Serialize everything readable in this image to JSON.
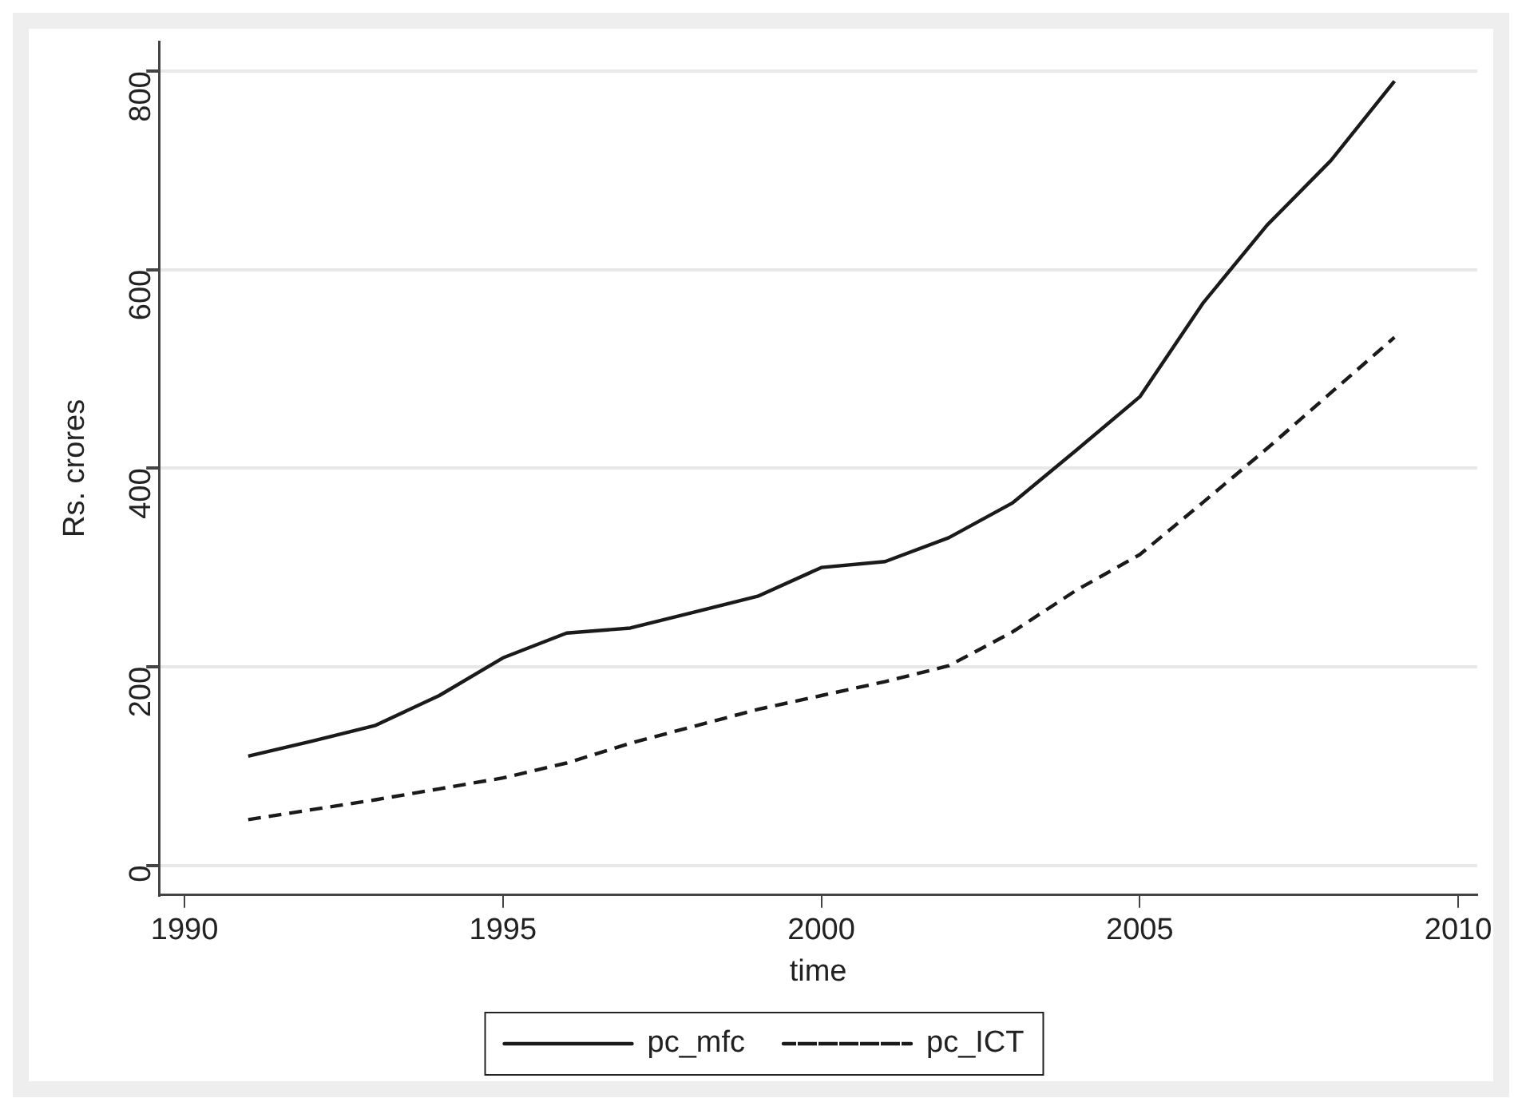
{
  "chart_data": {
    "type": "line",
    "xlabel": "time",
    "ylabel": "Rs. crores",
    "x": [
      1991,
      1992,
      1993,
      1994,
      1995,
      1996,
      1997,
      1998,
      1999,
      2000,
      2001,
      2002,
      2003,
      2004,
      2005,
      2006,
      2007,
      2008,
      2009
    ],
    "series": [
      {
        "name": "pc_mfc",
        "color": "#1a1a1a",
        "line_style": "solid",
        "values": [
          110,
          125,
          141,
          171,
          209,
          234,
          239,
          255,
          271,
          300,
          306,
          330,
          365,
          418,
          472,
          567,
          645,
          710,
          790
        ]
      },
      {
        "name": "pc_ICT",
        "color": "#1a1a1a",
        "line_style": "dashed",
        "values": [
          46,
          56,
          66,
          77,
          88,
          103,
          123,
          140,
          157,
          171,
          185,
          201,
          235,
          277,
          313,
          366,
          420,
          476,
          532
        ]
      }
    ],
    "xlim": [
      1989.6,
      2010.3
    ],
    "xticks": [
      1990,
      1995,
      2000,
      2005,
      2010
    ],
    "ylim": [
      -30,
      830
    ],
    "yticks": [
      0,
      200,
      400,
      600,
      800
    ],
    "grid": "y",
    "legend": "bottom",
    "marker": "none"
  }
}
